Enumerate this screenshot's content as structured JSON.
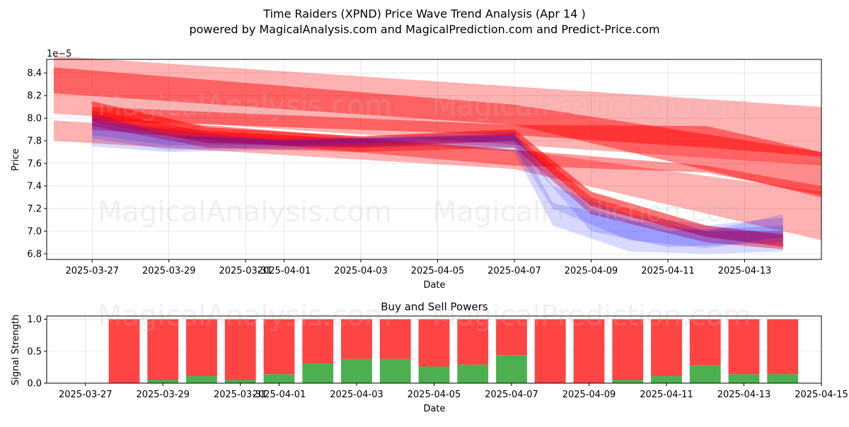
{
  "header": {
    "title": "Time Raiders (XPND) Price Wave Trend Analysis (Apr 14 )",
    "subtitle": "powered by MagicalAnalysis.com and MagicalPrediction.com and Predict-Price.com"
  },
  "watermarks": [
    "MagicalAnalysis.com",
    "MagicalPrediction.com"
  ],
  "colors": {
    "sell": "#ff4444",
    "buy": "#4caf50",
    "wave_red": "#ff0000",
    "wave_blue": "#0000ff"
  },
  "chart_data": [
    {
      "type": "area",
      "title": "",
      "xlabel": "Date",
      "ylabel": "Price",
      "y_scale_label": "1e−5",
      "ylim": [
        6.75,
        8.52
      ],
      "xlim": [
        "2025-03-26",
        "2025-04-15"
      ],
      "y_ticks": [
        "6.8",
        "7.0",
        "7.2",
        "7.4",
        "7.6",
        "7.8",
        "8.0",
        "8.2",
        "8.4"
      ],
      "x_ticks": [
        "2025-03-27",
        "2025-03-29",
        "2025-03-31",
        "2025-04-01",
        "2025-04-03",
        "2025-04-05",
        "2025-04-07",
        "2025-04-09",
        "2025-04-11",
        "2025-04-13"
      ],
      "grid": true,
      "series": [
        {
          "color": "red",
          "alpha": 0.3,
          "x": [
            "2025-03-26",
            "2025-04-15"
          ],
          "upper": [
            8.55,
            8.1
          ],
          "lower": [
            8.04,
            7.58
          ]
        },
        {
          "color": "red",
          "alpha": 0.45,
          "x": [
            "2025-03-26",
            "2025-04-07",
            "2025-04-15"
          ],
          "upper": [
            8.45,
            8.12,
            7.7
          ],
          "lower": [
            8.22,
            7.94,
            7.3
          ]
        },
        {
          "color": "red",
          "alpha": 0.3,
          "x": [
            "2025-03-26",
            "2025-04-07",
            "2025-04-15"
          ],
          "upper": [
            7.98,
            7.72,
            7.35
          ],
          "lower": [
            7.8,
            7.55,
            6.92
          ]
        },
        {
          "color": "red",
          "alpha": 0.45,
          "x": [
            "2025-03-27",
            "2025-04-07",
            "2025-04-12",
            "2025-04-15"
          ],
          "upper": [
            8.1,
            7.94,
            7.93,
            7.7
          ],
          "lower": [
            7.98,
            7.85,
            7.74,
            7.66
          ]
        },
        {
          "color": "red",
          "alpha": 0.4,
          "x": [
            "2025-03-27",
            "2025-04-07",
            "2025-04-12",
            "2025-04-15"
          ],
          "upper": [
            8.02,
            7.72,
            7.58,
            7.4
          ],
          "lower": [
            7.9,
            7.58,
            7.52,
            7.32
          ]
        },
        {
          "color": "red",
          "alpha": 0.55,
          "x": [
            "2025-03-27",
            "2025-03-30",
            "2025-04-03",
            "2025-04-07",
            "2025-04-09",
            "2025-04-12",
            "2025-04-14"
          ],
          "upper": [
            8.15,
            7.92,
            7.84,
            7.9,
            7.35,
            7.05,
            6.97
          ],
          "lower": [
            7.97,
            7.78,
            7.74,
            7.8,
            7.22,
            6.95,
            6.86
          ]
        },
        {
          "color": "red",
          "alpha": 0.4,
          "x": [
            "2025-03-27",
            "2025-03-30",
            "2025-04-03",
            "2025-04-07",
            "2025-04-09",
            "2025-04-12",
            "2025-04-14"
          ],
          "upper": [
            8.07,
            7.88,
            7.82,
            7.86,
            7.3,
            7.0,
            7.0
          ],
          "lower": [
            7.93,
            7.74,
            7.7,
            7.74,
            7.15,
            6.9,
            6.84
          ]
        },
        {
          "color": "blue",
          "alpha": 0.15,
          "x": [
            "2025-03-27",
            "2025-03-29",
            "2025-04-01",
            "2025-04-05",
            "2025-04-07",
            "2025-04-08",
            "2025-04-10",
            "2025-04-12",
            "2025-04-14"
          ],
          "upper": [
            8.05,
            7.85,
            7.82,
            7.83,
            7.86,
            7.25,
            7.1,
            7.0,
            7.15
          ],
          "lower": [
            7.75,
            7.7,
            7.72,
            7.75,
            7.7,
            7.05,
            6.82,
            6.8,
            6.82
          ]
        },
        {
          "color": "blue",
          "alpha": 0.15,
          "x": [
            "2025-03-27",
            "2025-03-29",
            "2025-04-01",
            "2025-04-05",
            "2025-04-07",
            "2025-04-08",
            "2025-04-10",
            "2025-04-12",
            "2025-04-14"
          ],
          "upper": [
            8.0,
            7.9,
            7.8,
            7.86,
            7.88,
            7.4,
            7.15,
            7.05,
            7.12
          ],
          "lower": [
            7.82,
            7.72,
            7.74,
            7.78,
            7.74,
            7.2,
            6.92,
            6.85,
            6.95
          ]
        },
        {
          "color": "blue",
          "alpha": 0.15,
          "x": [
            "2025-03-27",
            "2025-03-29",
            "2025-04-01",
            "2025-04-05",
            "2025-04-07",
            "2025-04-09",
            "2025-04-11",
            "2025-04-14"
          ],
          "upper": [
            7.98,
            7.84,
            7.8,
            7.84,
            7.85,
            7.2,
            7.0,
            7.05
          ],
          "lower": [
            7.85,
            7.76,
            7.76,
            7.8,
            7.78,
            7.0,
            6.86,
            6.9
          ]
        }
      ]
    },
    {
      "type": "bar",
      "title": "Buy and Sell Powers",
      "xlabel": "Date",
      "ylabel": "Signal Strength",
      "ylim": [
        0,
        1.05
      ],
      "xlim": [
        "2025-03-26",
        "2025-04-15"
      ],
      "y_ticks": [
        "0.0",
        "0.5",
        "1.0"
      ],
      "x_ticks": [
        "2025-03-27",
        "2025-03-29",
        "2025-03-31",
        "2025-04-01",
        "2025-04-03",
        "2025-04-05",
        "2025-04-07",
        "2025-04-09",
        "2025-04-11",
        "2025-04-13",
        "2025-04-15"
      ],
      "grid": true,
      "categories": [
        "2025-03-28",
        "2025-03-29",
        "2025-03-30",
        "2025-03-31",
        "2025-04-01",
        "2025-04-02",
        "2025-04-03",
        "2025-04-04",
        "2025-04-05",
        "2025-04-06",
        "2025-04-07",
        "2025-04-08",
        "2025-04-09",
        "2025-04-10",
        "2025-04-11",
        "2025-04-12",
        "2025-04-13",
        "2025-04-14"
      ],
      "series": [
        {
          "values": [
            0.0,
            0.05,
            0.11,
            0.05,
            0.14,
            0.31,
            0.38,
            0.38,
            0.26,
            0.29,
            0.44,
            0.0,
            0.0,
            0.05,
            0.11,
            0.28,
            0.14,
            0.14
          ]
        },
        {
          "values": [
            1.0,
            0.95,
            0.89,
            0.95,
            0.86,
            0.69,
            0.62,
            0.62,
            0.74,
            0.71,
            0.56,
            1.0,
            1.0,
            0.95,
            0.89,
            0.72,
            0.86,
            0.86
          ]
        }
      ]
    }
  ]
}
